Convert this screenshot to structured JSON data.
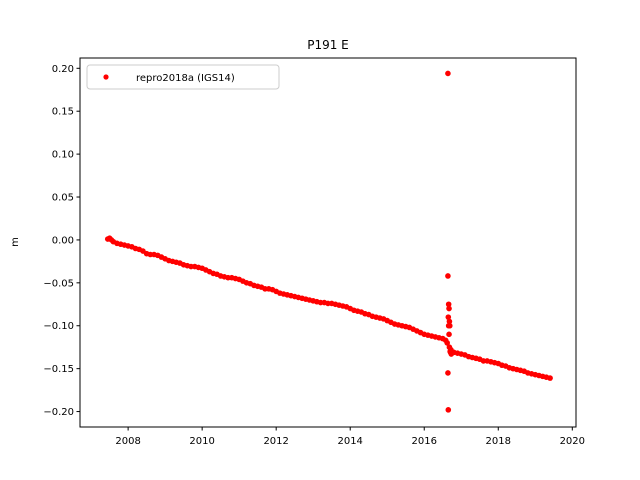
{
  "chart_data": {
    "type": "scatter",
    "title": "P191 E",
    "xlabel": "",
    "ylabel": "m",
    "xlim": [
      2006.7,
      2020.1
    ],
    "ylim": [
      -0.218,
      0.212
    ],
    "x_ticks": [
      2008,
      2010,
      2012,
      2014,
      2016,
      2018,
      2020
    ],
    "x_tick_labels": [
      "2008",
      "2010",
      "2012",
      "2014",
      "2016",
      "2018",
      "2020"
    ],
    "y_ticks": [
      0.2,
      0.15,
      0.1,
      0.05,
      0.0,
      -0.05,
      -0.1,
      -0.15,
      -0.2
    ],
    "y_tick_labels": [
      "0.20",
      "0.15",
      "0.10",
      "0.05",
      "0.00",
      "−0.05",
      "−0.10",
      "−0.15",
      "−0.20"
    ],
    "grid": false,
    "legend_position": "top-left",
    "colors": {
      "series": "#ff0000",
      "axes": "#000000",
      "background": "#ffffff"
    },
    "series": [
      {
        "name": "repro2018a (IGS14)",
        "marker": "circle",
        "color": "#ff0000",
        "x": [
          2007.45,
          2007.5,
          2007.55,
          2007.6,
          2007.7,
          2007.8,
          2007.9,
          2008.0,
          2008.1,
          2008.2,
          2008.3,
          2008.4,
          2008.5,
          2008.6,
          2008.7,
          2008.8,
          2008.9,
          2009.0,
          2009.1,
          2009.2,
          2009.3,
          2009.4,
          2009.5,
          2009.6,
          2009.7,
          2009.8,
          2009.9,
          2010.0,
          2010.1,
          2010.2,
          2010.3,
          2010.4,
          2010.5,
          2010.6,
          2010.7,
          2010.8,
          2010.9,
          2011.0,
          2011.1,
          2011.2,
          2011.3,
          2011.4,
          2011.5,
          2011.6,
          2011.7,
          2011.8,
          2011.9,
          2012.0,
          2012.1,
          2012.2,
          2012.3,
          2012.4,
          2012.5,
          2012.6,
          2012.7,
          2012.8,
          2012.9,
          2013.0,
          2013.1,
          2013.2,
          2013.3,
          2013.4,
          2013.5,
          2013.6,
          2013.7,
          2013.8,
          2013.9,
          2014.0,
          2014.1,
          2014.2,
          2014.3,
          2014.4,
          2014.5,
          2014.6,
          2014.7,
          2014.8,
          2014.9,
          2015.0,
          2015.1,
          2015.2,
          2015.3,
          2015.4,
          2015.5,
          2015.6,
          2015.7,
          2015.8,
          2015.9,
          2016.0,
          2016.1,
          2016.2,
          2016.3,
          2016.4,
          2016.5,
          2016.58,
          2016.62,
          2016.64,
          2016.64,
          2016.64,
          2016.65,
          2016.65,
          2016.66,
          2016.66,
          2016.67,
          2016.67,
          2016.68,
          2016.68,
          2016.69,
          2016.7,
          2016.71,
          2016.72,
          2016.73,
          2016.74,
          2016.8,
          2016.9,
          2017.0,
          2017.1,
          2017.2,
          2017.3,
          2017.4,
          2017.5,
          2017.6,
          2017.7,
          2017.8,
          2017.9,
          2018.0,
          2018.1,
          2018.2,
          2018.3,
          2018.4,
          2018.5,
          2018.6,
          2018.7,
          2018.8,
          2018.9,
          2019.0,
          2019.1,
          2019.2,
          2019.3,
          2019.4
        ],
        "y": [
          0.001,
          0.002,
          0.0,
          -0.002,
          -0.004,
          -0.005,
          -0.006,
          -0.007,
          -0.008,
          -0.01,
          -0.011,
          -0.013,
          -0.016,
          -0.017,
          -0.017,
          -0.018,
          -0.02,
          -0.022,
          -0.024,
          -0.025,
          -0.026,
          -0.027,
          -0.029,
          -0.03,
          -0.031,
          -0.031,
          -0.032,
          -0.033,
          -0.035,
          -0.037,
          -0.039,
          -0.04,
          -0.042,
          -0.043,
          -0.044,
          -0.044,
          -0.045,
          -0.046,
          -0.048,
          -0.05,
          -0.051,
          -0.053,
          -0.054,
          -0.055,
          -0.057,
          -0.057,
          -0.058,
          -0.06,
          -0.062,
          -0.063,
          -0.064,
          -0.065,
          -0.066,
          -0.067,
          -0.068,
          -0.069,
          -0.07,
          -0.071,
          -0.072,
          -0.073,
          -0.073,
          -0.074,
          -0.074,
          -0.075,
          -0.076,
          -0.077,
          -0.078,
          -0.08,
          -0.082,
          -0.083,
          -0.084,
          -0.086,
          -0.087,
          -0.089,
          -0.09,
          -0.091,
          -0.092,
          -0.094,
          -0.096,
          -0.098,
          -0.099,
          -0.1,
          -0.101,
          -0.102,
          -0.104,
          -0.106,
          -0.108,
          -0.11,
          -0.111,
          -0.112,
          -0.113,
          -0.114,
          -0.115,
          -0.117,
          -0.12,
          0.194,
          -0.042,
          -0.155,
          -0.09,
          -0.198,
          -0.075,
          -0.1,
          -0.08,
          -0.11,
          -0.095,
          -0.125,
          -0.1,
          -0.13,
          -0.131,
          -0.128,
          -0.133,
          -0.13,
          -0.131,
          -0.132,
          -0.133,
          -0.134,
          -0.136,
          -0.137,
          -0.138,
          -0.139,
          -0.141,
          -0.141,
          -0.142,
          -0.143,
          -0.144,
          -0.146,
          -0.147,
          -0.149,
          -0.15,
          -0.151,
          -0.152,
          -0.153,
          -0.155,
          -0.156,
          -0.157,
          -0.158,
          -0.159,
          -0.16,
          -0.161
        ]
      }
    ]
  }
}
